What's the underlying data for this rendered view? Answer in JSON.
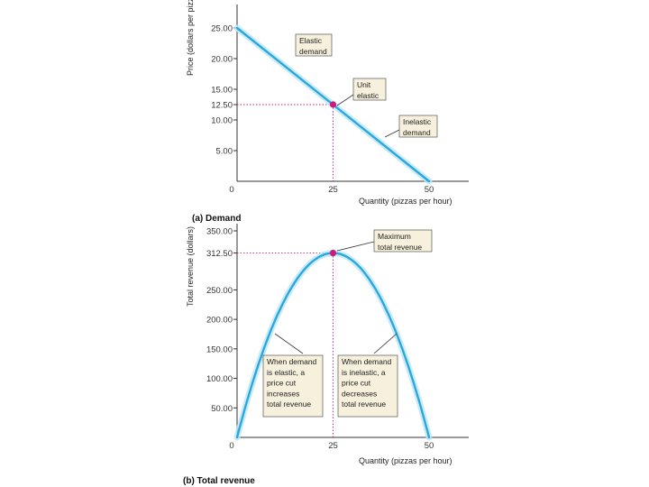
{
  "chart_data": [
    {
      "type": "line",
      "title": "",
      "panel_label": "(a) Demand",
      "xlabel": "Quantity (pizzas per hour)",
      "ylabel": "Price (dollars per pizza)",
      "xlim": [
        0,
        50
      ],
      "ylim": [
        0,
        25
      ],
      "x_ticks": [
        "0",
        "25",
        "50"
      ],
      "y_ticks": [
        "5.00",
        "10.00",
        "12.50",
        "15.00",
        "20.00",
        "25.00"
      ],
      "series": [
        {
          "x": [
            0,
            50
          ],
          "y": [
            25.0,
            0.0
          ]
        }
      ],
      "highlight_point": {
        "x": 25,
        "y": 12.5
      },
      "annotations": [
        {
          "text": [
            "Elastic",
            "demand"
          ],
          "x": 10,
          "y": 21
        },
        {
          "text": [
            "Unit",
            "elastic"
          ],
          "x": 25,
          "y": 12.5
        },
        {
          "text": [
            "Inelastic",
            "demand"
          ],
          "x": 38,
          "y": 6
        }
      ],
      "grid": false,
      "colors": {
        "line": "#29a8dd",
        "highlight": "#d01a7a",
        "note_bg": "#f6f0dc"
      }
    },
    {
      "type": "line",
      "title": "",
      "panel_label": "(b) Total revenue",
      "xlabel": "Quantity (pizzas per hour)",
      "ylabel": "Total revenue (dollars)",
      "xlim": [
        0,
        50
      ],
      "ylim": [
        0,
        350
      ],
      "x_ticks": [
        "0",
        "25",
        "50"
      ],
      "y_ticks": [
        "50.00",
        "100.00",
        "150.00",
        "200.00",
        "250.00",
        "312.50",
        "350.00"
      ],
      "series": [
        {
          "x": [
            0,
            5,
            10,
            15,
            20,
            25,
            30,
            35,
            40,
            45,
            50
          ],
          "y": [
            0,
            112.5,
            200,
            262.5,
            300,
            312.5,
            300,
            262.5,
            200,
            112.5,
            0
          ]
        }
      ],
      "highlight_point": {
        "x": 25,
        "y": 312.5
      },
      "annotations": [
        {
          "text": [
            "Maximum",
            "total revenue"
          ],
          "x": 25,
          "y": 312.5
        },
        {
          "text": [
            "When demand",
            "is elastic, a",
            "price cut",
            "increases",
            "total revenue"
          ],
          "x": 8,
          "y": 180
        },
        {
          "text": [
            "When demand",
            "is inelastic, a",
            "price cut",
            "decreases",
            "total revenue"
          ],
          "x": 42,
          "y": 180
        }
      ],
      "grid": false,
      "colors": {
        "line": "#29a8dd",
        "highlight": "#d01a7a",
        "note_bg": "#f6f0dc"
      }
    }
  ]
}
